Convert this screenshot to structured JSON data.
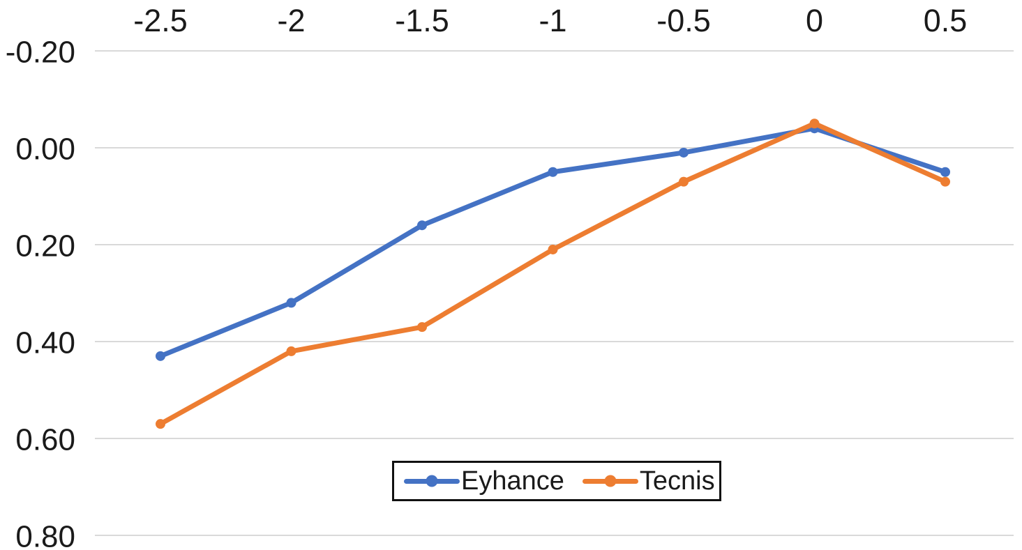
{
  "chart_data": {
    "type": "line",
    "title": "",
    "xlabel": "",
    "ylabel": "",
    "x": [
      -2.5,
      -2,
      -1.5,
      -1,
      -0.5,
      0,
      0.5
    ],
    "x_tick_labels": [
      "-2.5",
      "-2",
      "-1.5",
      "-1",
      "-0.5",
      "0",
      "0.5"
    ],
    "x_axis_position": "top",
    "xlim": [
      -2.5,
      0.5
    ],
    "y_ticks": [
      -0.2,
      0.0,
      0.2,
      0.4,
      0.6,
      0.8
    ],
    "y_tick_labels": [
      "-0.20",
      "0.00",
      "0.20",
      "0.40",
      "0.60",
      "0.80"
    ],
    "ylim": [
      -0.2,
      0.8
    ],
    "y_axis_inverted_downward": true,
    "grid": true,
    "gridline_color": "#d9d9d9",
    "background_color": "#ffffff",
    "text_color": "#1a1a1a",
    "series": [
      {
        "name": "Eyhance",
        "color": "#4472C4",
        "marker": "circle",
        "values": [
          0.43,
          0.32,
          0.16,
          0.05,
          0.01,
          -0.04,
          0.05
        ]
      },
      {
        "name": "Tecnis",
        "color": "#ED7D31",
        "marker": "circle",
        "values": [
          0.57,
          0.42,
          0.37,
          0.21,
          0.07,
          -0.05,
          0.07
        ]
      }
    ],
    "legend": {
      "position": "bottom-center",
      "border_color": "#111111",
      "entries": [
        "Eyhance",
        "Tecnis"
      ]
    }
  }
}
